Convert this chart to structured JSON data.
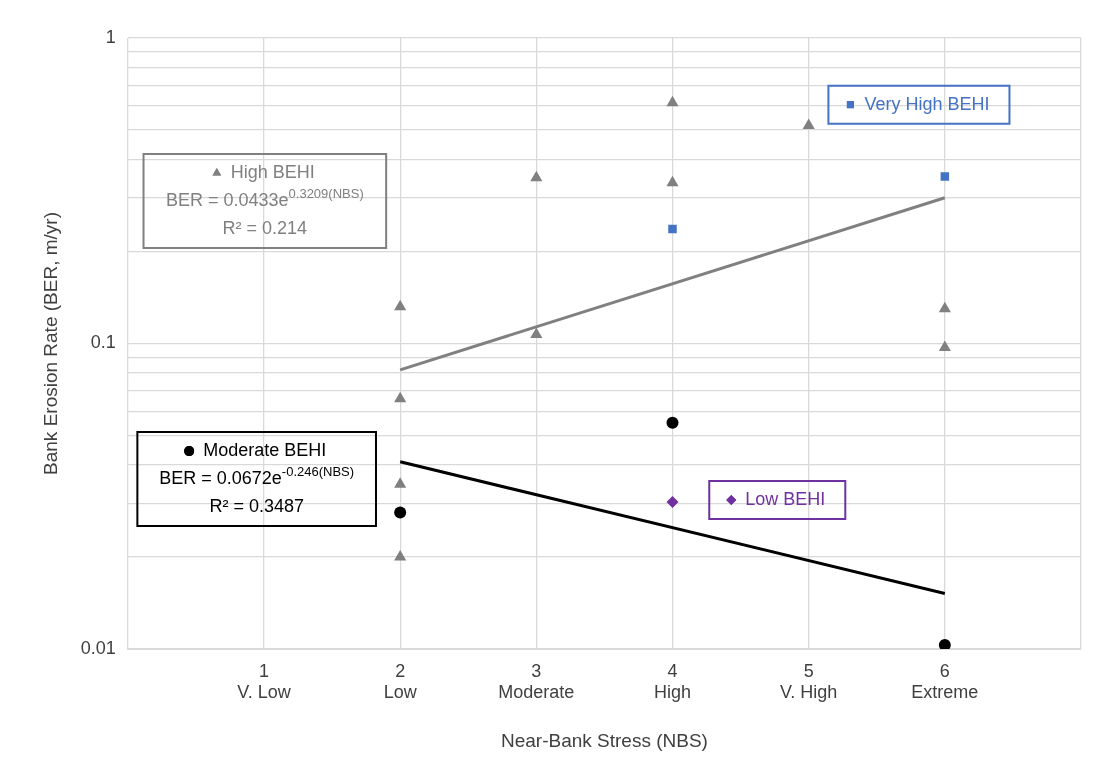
{
  "chart_data": {
    "type": "scatter",
    "xlabel": "Near-Bank Stress (NBS)",
    "ylabel": "Bank Erosion Rate (BER, m/yr)",
    "log": "y",
    "grid": true,
    "legend": "left",
    "xlim": [
      0,
      7
    ],
    "xticks": [
      {
        "value": 0,
        "label": null
      },
      {
        "value": 1,
        "label": "1\nV. Low"
      },
      {
        "value": 2,
        "label": "2\nLow"
      },
      {
        "value": 3,
        "label": "3\nModerate"
      },
      {
        "value": 4,
        "label": "4\nHigh"
      },
      {
        "value": 5,
        "label": "5\nV. High"
      },
      {
        "value": 6,
        "label": "6\nExtreme"
      },
      {
        "value": 7,
        "label": null
      }
    ],
    "ylim": [
      0.01,
      1
    ],
    "yticks": [
      0.01,
      {
        "value": 0.02,
        "label": null
      },
      {
        "value": 0.03,
        "label": null
      },
      {
        "value": 0.04,
        "label": null
      },
      {
        "value": 0.05,
        "label": null
      },
      {
        "value": 0.06,
        "label": null
      },
      {
        "value": 0.07,
        "label": null
      },
      {
        "value": 0.08,
        "label": null
      },
      {
        "value": 0.09,
        "label": null
      },
      0.1,
      {
        "value": 0.2,
        "label": null
      },
      {
        "value": 0.3,
        "label": null
      },
      {
        "value": 0.4,
        "label": null
      },
      {
        "value": 0.5,
        "label": null
      },
      {
        "value": 0.6,
        "label": null
      },
      {
        "value": 0.7,
        "label": null
      },
      {
        "value": 0.8,
        "label": null
      },
      {
        "value": 0.9,
        "label": null
      },
      1
    ],
    "series": [
      {
        "name": "High BEHI",
        "color": "#808080",
        "marker": "triangle",
        "x": [
          2,
          2,
          2,
          2,
          3,
          3,
          4,
          4,
          5,
          6,
          6
        ],
        "values": [
          0.132,
          0.066,
          0.0346,
          0.02,
          0.349,
          0.107,
          0.614,
          0.336,
          0.517,
          0.13,
          0.097
        ]
      },
      {
        "name": "Very High BEHI",
        "color": "#4472c4",
        "marker": "square",
        "x": [
          4,
          6
        ],
        "values": [
          0.237,
          0.352
        ]
      },
      {
        "name": "Moderate BEHI",
        "color": "#000000",
        "marker": "circle",
        "x": [
          2,
          4,
          6
        ],
        "values": [
          0.028,
          0.055,
          0.0103
        ]
      },
      {
        "name": "Low BEHI",
        "color": "#7030a0",
        "marker": "diamond",
        "x": [
          4
        ],
        "values": [
          0.0303
        ]
      },
      {
        "type": "line",
        "color": "#808080",
        "marker": "none",
        "x": [
          2,
          6
        ],
        "values": [
          0.082,
          0.3
        ]
      },
      {
        "type": "line",
        "color": "#000000",
        "marker": "none",
        "x": [
          2,
          6
        ],
        "values": [
          0.041,
          0.0152
        ]
      }
    ],
    "annotations": [
      "BER = 0.0433e$^{0.3209(NBS)}$",
      "R² = 0.214",
      "BER = 0.0672e$^{-0.246(NBS)}$",
      "R² = 0.3487"
    ]
  }
}
